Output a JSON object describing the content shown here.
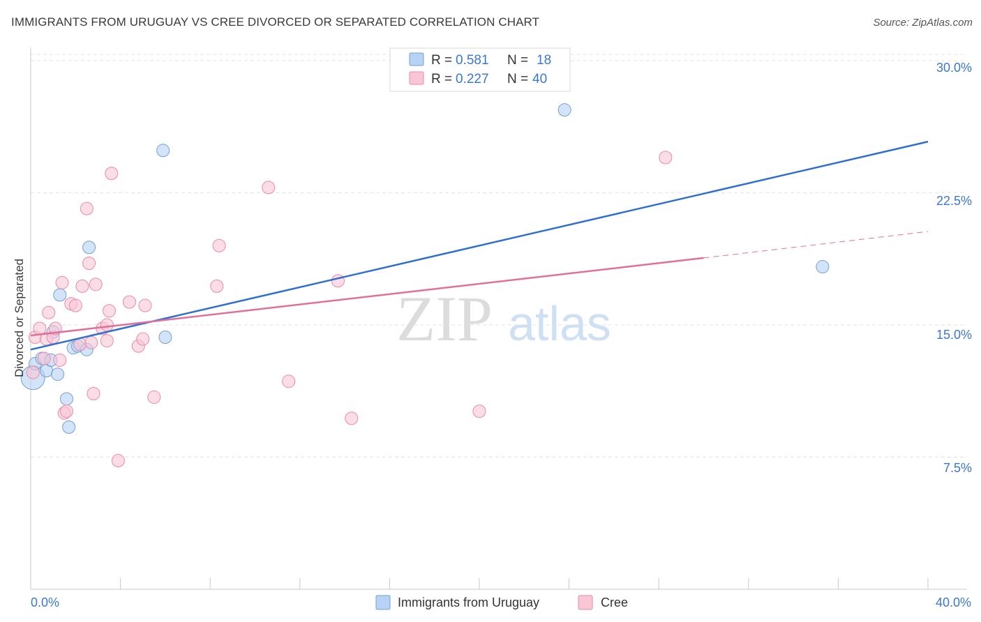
{
  "title": "IMMIGRANTS FROM URUGUAY VS CREE DIVORCED OR SEPARATED CORRELATION CHART",
  "source": "Source: ZipAtlas.com",
  "watermark": {
    "zip": "ZIP",
    "atlas": "atlas"
  },
  "legend_top": [
    {
      "r_label": "R =",
      "r_value": "0.581",
      "n_label": "N =",
      "n_value": "18",
      "fill": "#b8d2f4",
      "stroke": "#6f9fd8"
    },
    {
      "r_label": "R =",
      "r_value": "0.227",
      "n_label": "N =",
      "n_value": "40",
      "fill": "#f9c6d6",
      "stroke": "#e88aa8"
    }
  ],
  "legend_bottom": [
    {
      "label": "Immigrants from Uruguay",
      "fill": "#b8d2f4",
      "stroke": "#6f9fd8"
    },
    {
      "label": "Cree",
      "fill": "#f9c6d6",
      "stroke": "#e88aa8"
    }
  ],
  "colors": {
    "blue_line": "#2f6fcf",
    "pink_line": "#e0709a",
    "tick_text": "#3a78d0",
    "grid": "#e3e3e3"
  },
  "chart_data": {
    "type": "scatter",
    "title": "IMMIGRANTS FROM URUGUAY VS CREE DIVORCED OR SEPARATED CORRELATION CHART",
    "xlabel": "",
    "ylabel": "Divorced or Separated",
    "xlim": [
      0,
      40
    ],
    "ylim": [
      0,
      31.5
    ],
    "x_tick_labels": [
      "0.0%",
      "40.0%"
    ],
    "y_ticks": [
      7.5,
      15.0,
      22.5,
      30.0
    ],
    "y_tick_labels": [
      "7.5%",
      "15.0%",
      "22.5%",
      "30.0%"
    ],
    "grid": true,
    "legend_position": "top-center",
    "series": [
      {
        "name": "Immigrants from Uruguay",
        "color": "#6f9fd8",
        "fill": "#b8d2f4",
        "points": [
          [
            0.1,
            12.0
          ],
          [
            0.2,
            12.8
          ],
          [
            0.5,
            13.1
          ],
          [
            0.7,
            12.4
          ],
          [
            0.9,
            13.0
          ],
          [
            1.0,
            14.6
          ],
          [
            1.2,
            12.2
          ],
          [
            1.3,
            16.7
          ],
          [
            1.6,
            10.8
          ],
          [
            1.7,
            9.2
          ],
          [
            1.9,
            13.7
          ],
          [
            2.1,
            13.8
          ],
          [
            2.5,
            13.6
          ],
          [
            2.6,
            19.4
          ],
          [
            5.9,
            24.9
          ],
          [
            6.0,
            14.3
          ],
          [
            23.8,
            27.2
          ],
          [
            35.3,
            18.3
          ]
        ],
        "trend": {
          "x": [
            0,
            40
          ],
          "y": [
            13.6,
            25.4
          ]
        }
      },
      {
        "name": "Cree",
        "color": "#e88aa8",
        "fill": "#f9c6d6",
        "points": [
          [
            0.1,
            12.3
          ],
          [
            0.2,
            14.3
          ],
          [
            0.4,
            14.8
          ],
          [
            0.6,
            13.1
          ],
          [
            0.7,
            14.2
          ],
          [
            0.8,
            15.7
          ],
          [
            1.0,
            14.3
          ],
          [
            1.1,
            14.8
          ],
          [
            1.3,
            13.0
          ],
          [
            1.4,
            17.4
          ],
          [
            1.5,
            10.0
          ],
          [
            1.6,
            10.1
          ],
          [
            1.8,
            16.2
          ],
          [
            2.0,
            16.1
          ],
          [
            2.2,
            13.9
          ],
          [
            2.3,
            17.2
          ],
          [
            2.5,
            21.6
          ],
          [
            2.6,
            18.5
          ],
          [
            2.7,
            14.0
          ],
          [
            2.8,
            11.1
          ],
          [
            2.9,
            17.3
          ],
          [
            3.2,
            14.8
          ],
          [
            3.4,
            15.0
          ],
          [
            3.4,
            14.1
          ],
          [
            3.5,
            15.8
          ],
          [
            3.6,
            23.6
          ],
          [
            3.9,
            7.3
          ],
          [
            4.4,
            16.3
          ],
          [
            4.8,
            13.8
          ],
          [
            5.0,
            14.2
          ],
          [
            5.1,
            16.1
          ],
          [
            5.5,
            10.9
          ],
          [
            8.3,
            17.2
          ],
          [
            8.4,
            19.5
          ],
          [
            10.6,
            22.8
          ],
          [
            11.5,
            11.8
          ],
          [
            13.7,
            17.5
          ],
          [
            14.3,
            9.7
          ],
          [
            20.0,
            10.1
          ],
          [
            28.3,
            24.5
          ]
        ],
        "trend": {
          "x": [
            0,
            30
          ],
          "y": [
            14.4,
            18.8
          ]
        },
        "trend_extension": {
          "x": [
            30,
            40
          ],
          "y": [
            18.8,
            20.3
          ]
        }
      }
    ]
  }
}
